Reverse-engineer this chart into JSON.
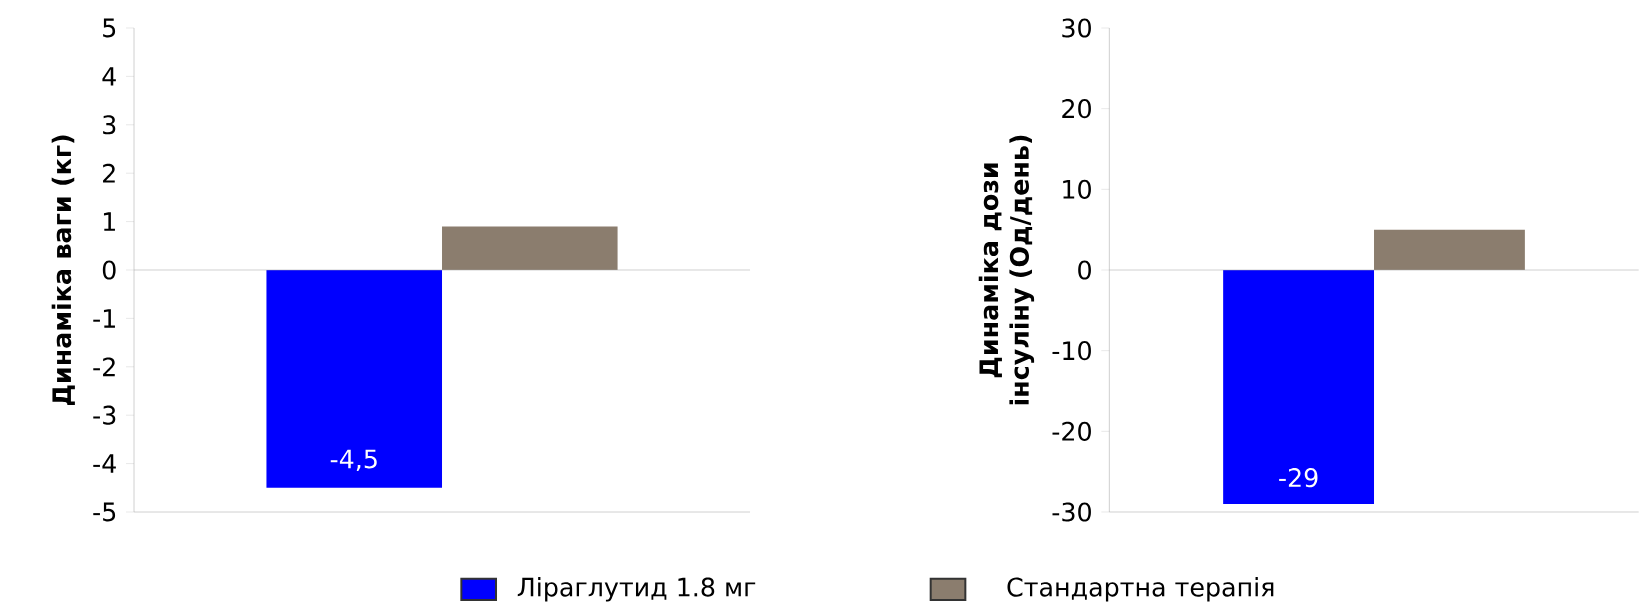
{
  "chart_data": [
    {
      "type": "bar",
      "ylabel": "Динаміка ваги (кг)",
      "categories": [
        null
      ],
      "tick_labels": "y",
      "legend": "bottom",
      "series": [
        {
          "name": "Ліраглутид 1.8 мг",
          "color": "#0000ff",
          "values": [
            -4.5
          ],
          "value_labels": [
            "-4,5"
          ]
        },
        {
          "name": "Стандартна терапія",
          "color": "#8b7d6e",
          "values": [
            0.9
          ],
          "value_labels": [
            null
          ]
        }
      ],
      "ylim": [
        -5,
        5
      ],
      "yticks": [
        -5,
        -4,
        -3,
        -2,
        -1,
        0,
        1,
        2,
        3,
        4,
        5
      ]
    },
    {
      "type": "bar",
      "ylabel": "Динаміка дози інсуліну (Од/день)",
      "categories": [
        null
      ],
      "tick_labels": "y",
      "series": [
        {
          "color": "#0000ff",
          "values": [
            -29
          ],
          "value_labels": [
            "-29"
          ]
        },
        {
          "color": "#8b7d6e",
          "values": [
            5
          ],
          "value_labels": [
            null
          ]
        }
      ],
      "ylim": [
        -30,
        30
      ],
      "yticks": [
        -30,
        -20,
        -10,
        0,
        10,
        20,
        30
      ]
    }
  ]
}
